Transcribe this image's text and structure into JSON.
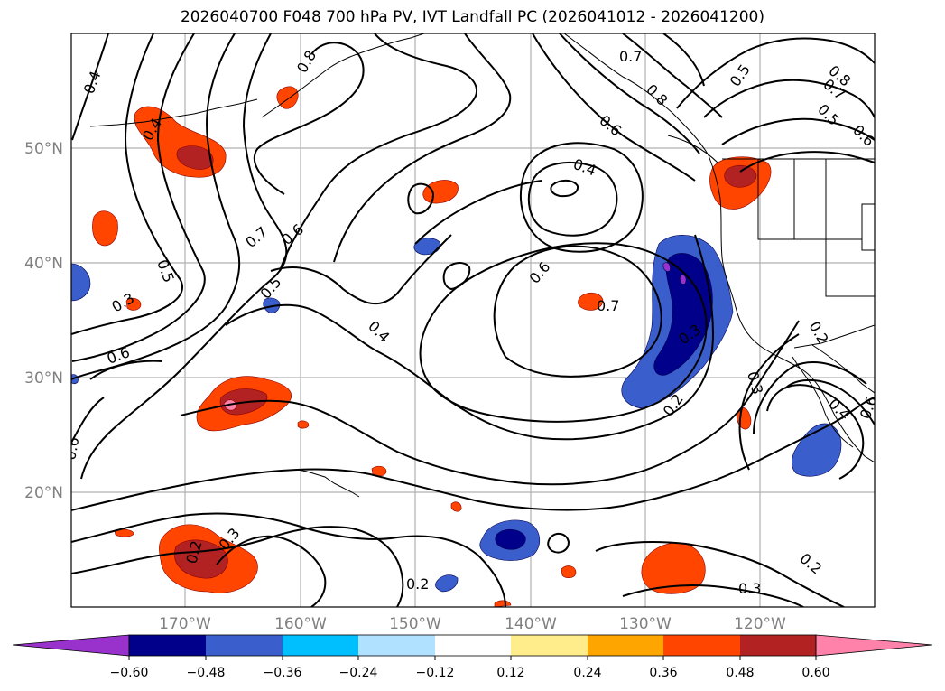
{
  "title": "2026040700 F048 700 hPa PV, IVT Landfall PC (2026041012 - 2026041200)",
  "map": {
    "lat_labels": [
      "50°N",
      "40°N",
      "30°N",
      "20°N"
    ],
    "lon_labels": [
      "170°W",
      "160°W",
      "150°W",
      "140°W",
      "130°W",
      "120°W"
    ],
    "contour_labels": [
      "0.4",
      "0.4",
      "0.8",
      "0.7",
      "0.8",
      "0.6",
      "0.5",
      "0.8",
      "0.7",
      "0.5",
      "0.6",
      "0.4",
      "0.7",
      "0.6",
      "0.5",
      "0.5",
      "0.3",
      "0.6",
      "0.6",
      "0.4",
      "0.6",
      "0.7",
      "0.3",
      "0.2",
      "0.3",
      "0.2",
      "0.4",
      "0.6",
      "0.3",
      "0.2",
      "0.2",
      "0.3",
      "0.2"
    ]
  },
  "colorbar": {
    "ticks": [
      "−0.60",
      "−0.48",
      "−0.36",
      "−0.24",
      "−0.12",
      "0.12",
      "0.24",
      "0.36",
      "0.48",
      "0.60"
    ],
    "colors": {
      "under": "#9932cc",
      "bins": [
        "#00008b",
        "#3a5fcd",
        "#00bfff",
        "#b0e2ff",
        "#ffffff",
        "#ffec8b",
        "#ffa500",
        "#ff4500",
        "#b22222",
        "#ff82ab"
      ],
      "over": "#ff82ab"
    }
  }
}
